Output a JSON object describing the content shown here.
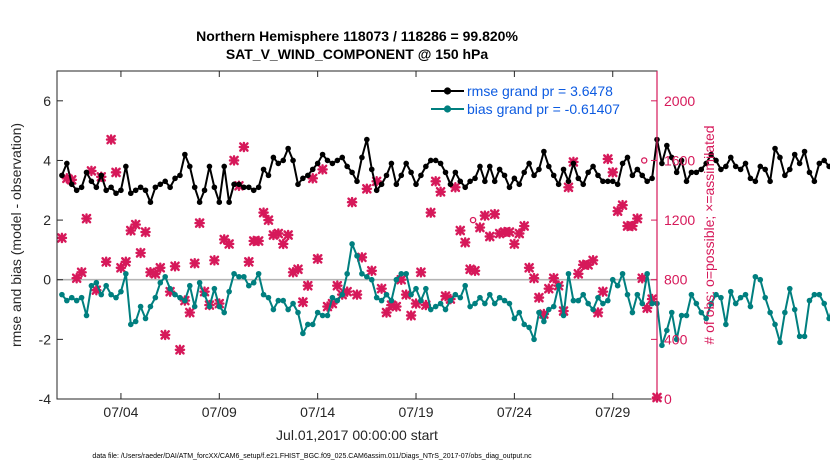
{
  "title_line1": "Northern Hemisphere 118073 / 118286 = 99.820%",
  "title_line2": "SAT_V_WIND_COMPONENT @ 150 hPa",
  "footer": "data file: /Users/raeder/DAI/ATM_forcXX/CAM6_setup/f.e21.FHIST_BGC.f09_025.CAM6assim.011/Diags_NTrS_2017-07/obs_diag_output.nc",
  "colors": {
    "rmse": "#000000",
    "bias": "#007f7f",
    "obs": "#d6195a",
    "zero_line": "#b4b4b4",
    "legend_text": "#0d5be1"
  },
  "chart_data": {
    "type": "line",
    "xlabel": "Jul.01,2017 00:00:00 start",
    "ylabel_left": "rmse and bias (model - observation)",
    "ylabel_right": "# of obs: o=possible; ×=assimilated",
    "x_ticks": [
      "07/04",
      "07/09",
      "07/14",
      "07/19",
      "07/24",
      "07/29"
    ],
    "x_tick_days": [
      4,
      9,
      14,
      19,
      24,
      29
    ],
    "xlim": [
      0.75,
      31.25
    ],
    "ylim_left": [
      -4,
      7
    ],
    "y_ticks_left": [
      "-4",
      "-2",
      "0",
      "2",
      "4",
      "6"
    ],
    "ylim_right": [
      0,
      2200
    ],
    "y_ticks_right": [
      "0",
      "400",
      "800",
      "1200",
      "1600",
      "2000"
    ],
    "x_start_day": 1.0,
    "x_step_days": 0.25,
    "series": [
      {
        "name": "rmse grand pr = 3.6478",
        "axis": "left",
        "values": [
          3.5,
          3.9,
          3.2,
          3.0,
          3.1,
          3.6,
          3.3,
          3.1,
          3.5,
          3.0,
          3.1,
          2.9,
          3.0,
          3.8,
          2.9,
          3.0,
          3.1,
          3.0,
          2.6,
          3.1,
          3.2,
          3.3,
          3.1,
          3.4,
          3.5,
          4.2,
          3.8,
          3.1,
          2.6,
          3.0,
          3.8,
          3.1,
          2.6,
          3.8,
          2.6,
          3.2,
          3.2,
          3.1,
          3.1,
          3.0,
          3.1,
          3.7,
          3.5,
          4.1,
          3.9,
          4.0,
          4.4,
          4.0,
          3.2,
          3.4,
          3.5,
          3.7,
          3.9,
          4.2,
          4.0,
          3.9,
          4.0,
          4.1,
          3.8,
          3.6,
          3.3,
          4.1,
          4.7,
          3.7,
          3.0,
          3.2,
          3.5,
          3.9,
          3.2,
          3.5,
          3.9,
          3.6,
          3.2,
          3.5,
          3.8,
          4.0,
          4.0,
          3.9,
          3.6,
          3.2,
          3.6,
          3.3,
          3.1,
          3.3,
          3.4,
          3.8,
          3.3,
          3.8,
          3.3,
          3.7,
          3.5,
          3.1,
          3.4,
          3.2,
          3.6,
          3.9,
          3.5,
          3.7,
          4.3,
          3.8,
          3.5,
          3.2,
          3.7,
          3.3,
          3.9,
          3.4,
          3.2,
          3.6,
          3.8,
          3.5,
          3.3,
          3.3,
          3.3,
          3.2,
          3.9,
          4.1,
          3.5,
          3.7,
          3.5,
          3.3,
          3.4,
          4.7,
          3.9,
          4.5,
          4.1,
          3.6,
          4.0,
          3.3,
          3.6,
          3.6,
          3.7,
          3.9,
          4.2,
          4.0,
          3.7,
          3.8,
          4.1,
          3.8,
          3.7,
          3.9,
          3.4,
          3.3,
          3.8,
          3.7,
          3.3,
          4.4,
          4.1,
          3.5,
          3.7,
          4.2,
          3.9,
          4.3,
          3.6,
          3.3,
          3.9,
          4.0,
          3.8,
          3.8,
          3.7,
          4.1,
          4.0,
          3.7,
          3.7,
          4.6,
          3.8,
          4.2,
          4.0,
          3.5,
          3.0,
          3.5,
          4.1,
          3.9,
          3.9,
          4.0,
          3.9,
          5.3,
          4.0,
          3.9,
          3.5,
          3.4,
          3.6,
          3.5
        ]
      },
      {
        "name": "bias grand pr = -0.61407",
        "axis": "left",
        "values": [
          -0.5,
          -0.7,
          -0.6,
          -0.7,
          -0.6,
          -1.2,
          -0.2,
          -0.1,
          -0.5,
          -0.2,
          -0.5,
          -0.6,
          -0.4,
          0.2,
          -1.5,
          -1.4,
          -0.9,
          -1.3,
          -0.9,
          -0.6,
          -0.1,
          0.1,
          -0.3,
          -0.5,
          -0.6,
          -0.7,
          -0.2,
          -0.9,
          -0.1,
          -0.5,
          -0.9,
          -0.3,
          -0.9,
          -1.1,
          -0.4,
          0.2,
          0.1,
          0.1,
          -0.2,
          -0.1,
          0.2,
          -0.5,
          -0.6,
          -1.0,
          -0.7,
          -0.7,
          -1.0,
          -0.8,
          -1.1,
          -1.8,
          -1.5,
          -1.5,
          -1.1,
          -1.2,
          -1.2,
          -0.6,
          -0.7,
          -0.5,
          0.2,
          1.2,
          0.8,
          0.2,
          0.1,
          0.0,
          -0.6,
          -0.7,
          -0.5,
          -0.7,
          0.0,
          0.2,
          0.2,
          -0.5,
          -0.3,
          -0.7,
          -0.3,
          -1.0,
          -0.9,
          -0.8,
          -1.0,
          -0.7,
          -0.5,
          -0.6,
          -0.2,
          -0.9,
          -0.8,
          -0.6,
          -0.8,
          -0.5,
          -0.8,
          -0.6,
          -0.7,
          -0.8,
          -1.3,
          -1.1,
          -1.5,
          -1.6,
          -2.0,
          -1.1,
          -1.4,
          -1.0,
          -0.9,
          -0.2,
          -1.2,
          0.2,
          -0.7,
          -0.7,
          -0.5,
          -0.8,
          -1.0,
          -0.6,
          -0.8,
          -0.7,
          0.0,
          -0.2,
          0.2,
          -0.5,
          -1.1,
          -0.5,
          -0.8,
          0.2,
          -0.8,
          -0.8,
          -2.2,
          -1.7,
          -1.1,
          -2.0,
          -1.2,
          -1.2,
          -0.5,
          -0.8,
          -1.1,
          -1.3,
          -0.8,
          -0.5,
          -0.6,
          -1.5,
          -0.4,
          -0.8,
          -0.6,
          -0.5,
          -0.9,
          0.1,
          0.0,
          -0.6,
          -1.1,
          -1.5,
          -2.1,
          -1.1,
          -0.3,
          -1.0,
          -1.9,
          -1.9,
          -0.7,
          -0.5,
          -0.5,
          -0.8,
          -1.3,
          -0.8,
          -1.1,
          -1.6,
          -0.4,
          -0.5,
          -1.2,
          -1.0,
          -0.9,
          -0.7,
          -0.6,
          0.4,
          -0.4,
          0.0,
          -0.9,
          -0.6,
          -1.0,
          -0.3,
          -0.7,
          -1.2,
          0.4,
          0.3,
          -0.5,
          -0.8,
          -0.9,
          -0.9,
          -0.8
        ]
      },
      {
        "name": "# of obs assimilated",
        "axis": "right",
        "marker": "x",
        "points": [
          [
            1.0,
            1080
          ],
          [
            1.25,
            1480
          ],
          [
            1.5,
            1470
          ],
          [
            1.75,
            810
          ],
          [
            2.0,
            850
          ],
          [
            2.25,
            1210
          ],
          [
            2.5,
            1530
          ],
          [
            2.75,
            730
          ],
          [
            3.0,
            1490
          ],
          [
            3.25,
            920
          ],
          [
            3.5,
            1740
          ],
          [
            3.75,
            1520
          ],
          [
            4.0,
            880
          ],
          [
            4.25,
            920
          ],
          [
            4.5,
            1130
          ],
          [
            4.75,
            1170
          ],
          [
            5.0,
            980
          ],
          [
            5.25,
            1120
          ],
          [
            5.5,
            850
          ],
          [
            5.75,
            840
          ],
          [
            6.0,
            880
          ],
          [
            6.25,
            430
          ],
          [
            6.5,
            720
          ],
          [
            6.75,
            890
          ],
          [
            7.0,
            330
          ],
          [
            7.25,
            660
          ],
          [
            7.5,
            580
          ],
          [
            7.75,
            910
          ],
          [
            8.0,
            1180
          ],
          [
            8.25,
            720
          ],
          [
            8.5,
            630
          ],
          [
            8.75,
            930
          ],
          [
            9.0,
            640
          ],
          [
            9.25,
            1070
          ],
          [
            9.5,
            1040
          ],
          [
            9.75,
            1600
          ],
          [
            10.0,
            1430
          ],
          [
            10.25,
            1690
          ],
          [
            10.5,
            920
          ],
          [
            10.75,
            1060
          ],
          [
            11.0,
            1060
          ],
          [
            11.25,
            1250
          ],
          [
            11.5,
            1200
          ],
          [
            11.75,
            1100
          ],
          [
            12.0,
            1110
          ],
          [
            12.25,
            1040
          ],
          [
            12.5,
            1100
          ],
          [
            12.75,
            850
          ],
          [
            13.0,
            870
          ],
          [
            13.25,
            650
          ],
          [
            13.5,
            760
          ],
          [
            13.75,
            1480
          ],
          [
            14.0,
            940
          ],
          [
            14.25,
            1540
          ],
          [
            14.5,
            620
          ],
          [
            14.75,
            640
          ],
          [
            15.0,
            760
          ],
          [
            15.25,
            700
          ],
          [
            15.5,
            720
          ],
          [
            15.75,
            1320
          ],
          [
            16.0,
            700
          ],
          [
            16.25,
            950
          ],
          [
            16.5,
            1410
          ],
          [
            16.75,
            860
          ],
          [
            17.0,
            1460
          ],
          [
            17.25,
            740
          ],
          [
            17.5,
            580
          ],
          [
            17.75,
            630
          ],
          [
            18.0,
            620
          ],
          [
            18.25,
            800
          ],
          [
            18.5,
            700
          ],
          [
            18.75,
            560
          ],
          [
            19.0,
            640
          ],
          [
            19.25,
            850
          ],
          [
            19.5,
            630
          ],
          [
            19.75,
            1250
          ],
          [
            20.0,
            1460
          ],
          [
            20.25,
            1390
          ],
          [
            20.5,
            690
          ],
          [
            20.75,
            670
          ],
          [
            21.0,
            1420
          ],
          [
            21.25,
            1130
          ],
          [
            21.5,
            1050
          ],
          [
            21.75,
            870
          ],
          [
            22.0,
            860
          ],
          [
            22.25,
            1150
          ],
          [
            22.5,
            1230
          ],
          [
            22.75,
            1090
          ],
          [
            23.0,
            1240
          ],
          [
            23.25,
            1110
          ],
          [
            23.5,
            1120
          ],
          [
            23.75,
            1120
          ],
          [
            24.0,
            1040
          ],
          [
            24.25,
            1110
          ],
          [
            24.5,
            1160
          ],
          [
            24.75,
            880
          ],
          [
            25.0,
            810
          ],
          [
            25.25,
            680
          ],
          [
            25.5,
            570
          ],
          [
            25.75,
            740
          ],
          [
            26.0,
            810
          ],
          [
            26.25,
            760
          ],
          [
            26.5,
            590
          ],
          [
            26.75,
            1420
          ],
          [
            27.0,
            1590
          ],
          [
            27.25,
            840
          ],
          [
            27.5,
            900
          ],
          [
            27.75,
            900
          ],
          [
            28.0,
            930
          ],
          [
            28.25,
            580
          ],
          [
            28.5,
            720
          ],
          [
            28.75,
            1610
          ],
          [
            29.0,
            1520
          ],
          [
            29.25,
            1260
          ],
          [
            29.5,
            1300
          ],
          [
            29.75,
            1160
          ],
          [
            30.0,
            1160
          ],
          [
            30.25,
            1210
          ],
          [
            30.5,
            810
          ],
          [
            30.75,
            610
          ],
          [
            31.0,
            670
          ],
          [
            31.25,
            10
          ]
        ]
      },
      {
        "name": "# of obs possible",
        "axis": "right",
        "marker": "o",
        "points": [
          [
            21.9,
            1200
          ],
          [
            30.6,
            1600
          ]
        ]
      }
    ]
  }
}
